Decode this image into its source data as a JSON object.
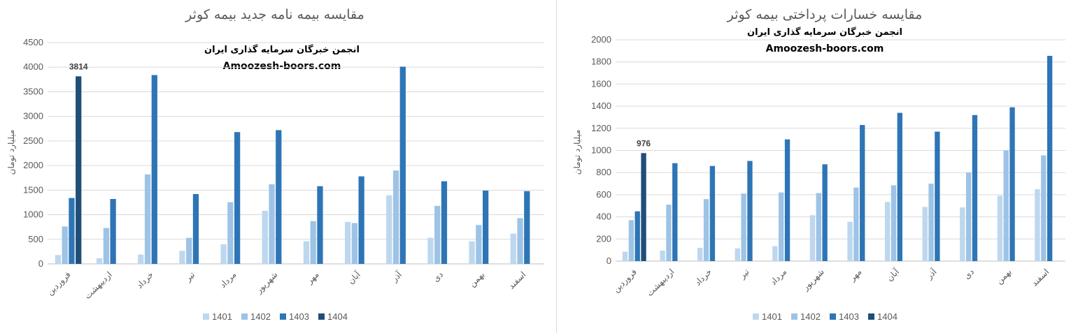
{
  "chart_data": [
    {
      "type": "bar",
      "title": "مقایسه بیمه نامه جدید بیمه کوثر",
      "watermark_line1": "انجمن خبرگان سرمایه گذاری ایران",
      "watermark_line2": "Amoozesh-boors.com",
      "ylabel": "میلیارد تومان",
      "ylim": [
        0,
        4500
      ],
      "yticks": [
        0,
        500,
        1000,
        1500,
        2000,
        2500,
        3000,
        3500,
        4000,
        4500
      ],
      "grid": true,
      "legend_position": "bottom",
      "categories": [
        "فروردین",
        "اردیبهشت",
        "خرداد",
        "تیر",
        "مرداد",
        "شهریور",
        "مهر",
        "آبان",
        "آذر",
        "دی",
        "بهمن",
        "اسفند"
      ],
      "series": [
        {
          "name": "1401",
          "color": "#bdd7ee",
          "values": [
            180,
            115,
            190,
            265,
            400,
            1080,
            460,
            855,
            1395,
            530,
            460,
            615
          ]
        },
        {
          "name": "1402",
          "color": "#9dc3e6",
          "values": [
            760,
            730,
            1820,
            530,
            1255,
            1620,
            870,
            830,
            1900,
            1180,
            790,
            930
          ]
        },
        {
          "name": "1403",
          "color": "#2e75b6",
          "values": [
            1340,
            1320,
            3840,
            1420,
            2680,
            2720,
            1580,
            1780,
            4010,
            1680,
            1490,
            1480
          ]
        },
        {
          "name": "1404",
          "color": "#1f4e79",
          "values": [
            3814,
            null,
            null,
            null,
            null,
            null,
            null,
            null,
            null,
            null,
            null,
            null
          ]
        }
      ],
      "data_labels": [
        {
          "series": "1404",
          "category": "فروردین",
          "text": "3814"
        }
      ]
    },
    {
      "type": "bar",
      "title": "مقایسه خسارات پرداختی بیمه کوثر",
      "watermark_line1": "انجمن خبرگان سرمایه گذاری ایران",
      "watermark_line2": "Amoozesh-boors.com",
      "ylabel": "میلیارد تومان",
      "ylim": [
        0,
        2000
      ],
      "yticks": [
        0,
        200,
        400,
        600,
        800,
        1000,
        1200,
        1400,
        1600,
        1800,
        2000
      ],
      "grid": true,
      "legend_position": "bottom",
      "categories": [
        "فروردین",
        "اردیبهشت",
        "خرداد",
        "تیر",
        "مرداد",
        "شهریور",
        "مهر",
        "آبان",
        "آذر",
        "دی",
        "بهمن",
        "اسفند"
      ],
      "series": [
        {
          "name": "1401",
          "color": "#bdd7ee",
          "values": [
            85,
            95,
            120,
            115,
            135,
            415,
            355,
            535,
            490,
            485,
            590,
            650
          ]
        },
        {
          "name": "1402",
          "color": "#9dc3e6",
          "values": [
            370,
            510,
            560,
            610,
            620,
            615,
            665,
            685,
            700,
            800,
            1000,
            955
          ]
        },
        {
          "name": "1403",
          "color": "#2e75b6",
          "values": [
            450,
            885,
            860,
            905,
            1100,
            875,
            1230,
            1340,
            1170,
            1320,
            1390,
            1855
          ]
        },
        {
          "name": "1404",
          "color": "#1f4e79",
          "values": [
            976,
            null,
            null,
            null,
            null,
            null,
            null,
            null,
            null,
            null,
            null,
            null
          ]
        }
      ],
      "data_labels": [
        {
          "series": "1404",
          "category": "فروردین",
          "text": "976"
        }
      ]
    }
  ]
}
